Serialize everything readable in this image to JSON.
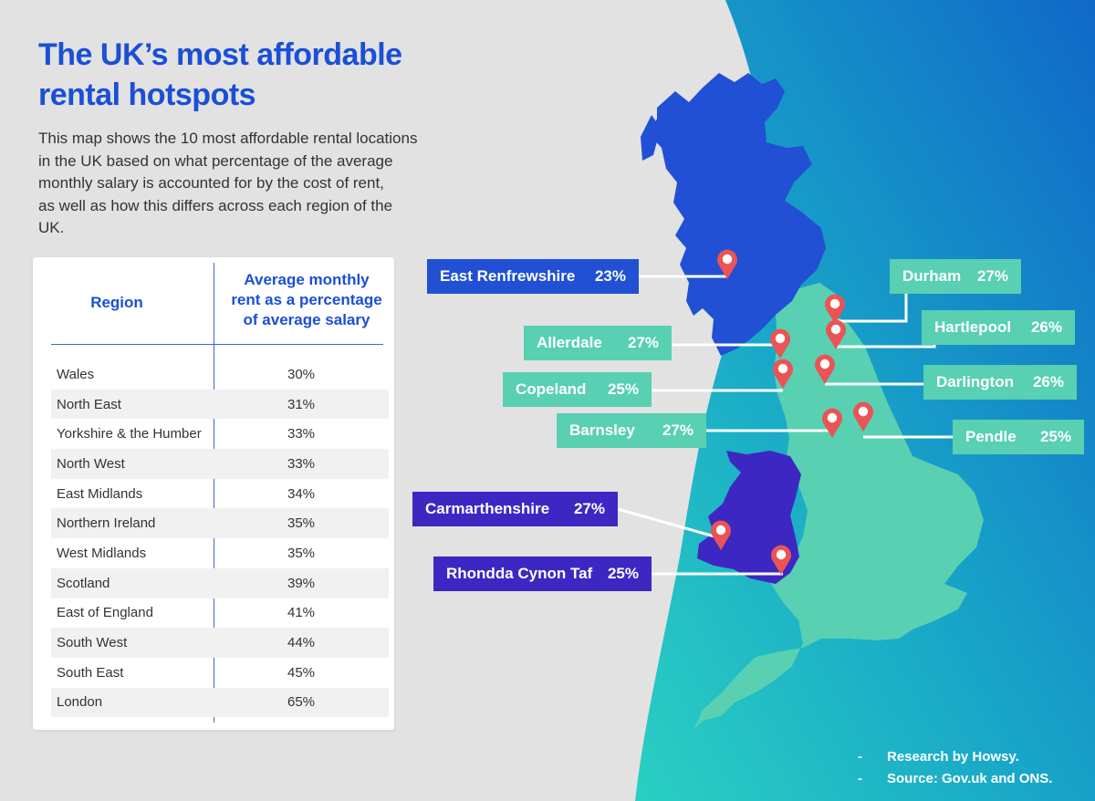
{
  "title": {
    "line1": "The UK’s most affordable",
    "line2": "rental hotspots"
  },
  "description": {
    "line1": "This map shows the 10 most affordable rental locations",
    "line2": "in the UK based on what percentage of the average",
    "line3": "monthly salary is accounted for by the cost of rent,",
    "line4": "as well as how this differs across each region of the UK."
  },
  "table": {
    "col_region": "Region",
    "col_rent": {
      "line1": "Average monthly",
      "line2": "rent as a percentage",
      "line3": "of average salary"
    },
    "rows": [
      {
        "region": "Wales",
        "pct": "30%"
      },
      {
        "region": "North East",
        "pct": "31%"
      },
      {
        "region": "Yorkshire & the Humber",
        "pct": "33%"
      },
      {
        "region": "North West",
        "pct": "33%"
      },
      {
        "region": "East Midlands",
        "pct": "34%"
      },
      {
        "region": "Northern Ireland",
        "pct": "35%"
      },
      {
        "region": "West Midlands",
        "pct": "35%"
      },
      {
        "region": "Scotland",
        "pct": "39%"
      },
      {
        "region": "East of England",
        "pct": "41%"
      },
      {
        "region": "South West",
        "pct": "44%"
      },
      {
        "region": "South East",
        "pct": "45%"
      },
      {
        "region": "London",
        "pct": "65%"
      }
    ]
  },
  "hotspots": {
    "east_renfrewshire": {
      "name": "East Renfrewshire",
      "pct": "23%"
    },
    "durham": {
      "name": "Durham",
      "pct": "27%"
    },
    "hartlepool": {
      "name": "Hartlepool",
      "pct": "26%"
    },
    "allerdale": {
      "name": "Allerdale",
      "pct": "27%"
    },
    "copeland": {
      "name": "Copeland",
      "pct": "25%"
    },
    "darlington": {
      "name": "Darlington",
      "pct": "26%"
    },
    "barnsley": {
      "name": "Barnsley",
      "pct": "27%"
    },
    "pendle": {
      "name": "Pendle",
      "pct": "25%"
    },
    "carmarthenshire": {
      "name": "Carmarthenshire",
      "pct": "27%"
    },
    "rhondda": {
      "name": "Rhondda Cynon Taf",
      "pct": "25%"
    }
  },
  "credits": {
    "dash": "-",
    "line1": "Research by Howsy.",
    "line2": "Source: Gov.uk and ONS."
  },
  "colors": {
    "title": "#1a4fd6",
    "scotland": "#2150d4",
    "england": "#58d0b1",
    "wales": "#3d27c3",
    "sea_start": "#2ad0c2",
    "sea_end": "#1068c8",
    "pin": "#ea5454"
  }
}
